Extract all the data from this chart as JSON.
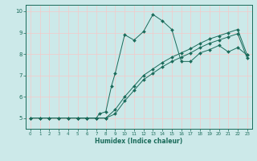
{
  "xlabel": "Humidex (Indice chaleur)",
  "bg_color": "#cce9e9",
  "line_color": "#1a6b5a",
  "grid_color": "#f5c8c8",
  "xlim": [
    -0.5,
    23.5
  ],
  "ylim": [
    4.5,
    10.3
  ],
  "xticks": [
    0,
    1,
    2,
    3,
    4,
    5,
    6,
    7,
    8,
    9,
    10,
    11,
    12,
    13,
    14,
    15,
    16,
    17,
    18,
    19,
    20,
    21,
    22,
    23
  ],
  "yticks": [
    5,
    6,
    7,
    8,
    9,
    10
  ],
  "line1_x": [
    0,
    1,
    2,
    3,
    4,
    5,
    6,
    7,
    8,
    9,
    10,
    11,
    12,
    13,
    14,
    15,
    16,
    17,
    18,
    19,
    20,
    21,
    22,
    23
  ],
  "line1_y": [
    5.0,
    5.0,
    5.0,
    5.0,
    5.0,
    5.0,
    5.0,
    5.0,
    5.0,
    5.4,
    6.0,
    6.5,
    7.0,
    7.3,
    7.6,
    7.85,
    8.05,
    8.25,
    8.5,
    8.7,
    8.85,
    9.0,
    9.15,
    7.95
  ],
  "line2_x": [
    0,
    1,
    2,
    3,
    4,
    5,
    6,
    7,
    8,
    9,
    10,
    11,
    12,
    13,
    14,
    15,
    16,
    17,
    18,
    19,
    20,
    21,
    22,
    23
  ],
  "line2_y": [
    5.0,
    5.0,
    5.0,
    5.0,
    5.0,
    5.0,
    5.0,
    5.0,
    5.0,
    5.2,
    5.8,
    6.3,
    6.8,
    7.1,
    7.4,
    7.65,
    7.85,
    8.05,
    8.3,
    8.5,
    8.65,
    8.8,
    8.95,
    7.8
  ],
  "line3_x": [
    5,
    6,
    7,
    7.3,
    8,
    8.6,
    9,
    10,
    11,
    12,
    13,
    14,
    15,
    16,
    17,
    18,
    19,
    20,
    21,
    22,
    23
  ],
  "line3_y": [
    5.0,
    5.0,
    5.0,
    5.2,
    5.3,
    6.5,
    7.1,
    8.9,
    8.65,
    9.05,
    9.85,
    9.55,
    9.15,
    7.65,
    7.65,
    8.05,
    8.2,
    8.4,
    8.1,
    8.3,
    7.95
  ]
}
